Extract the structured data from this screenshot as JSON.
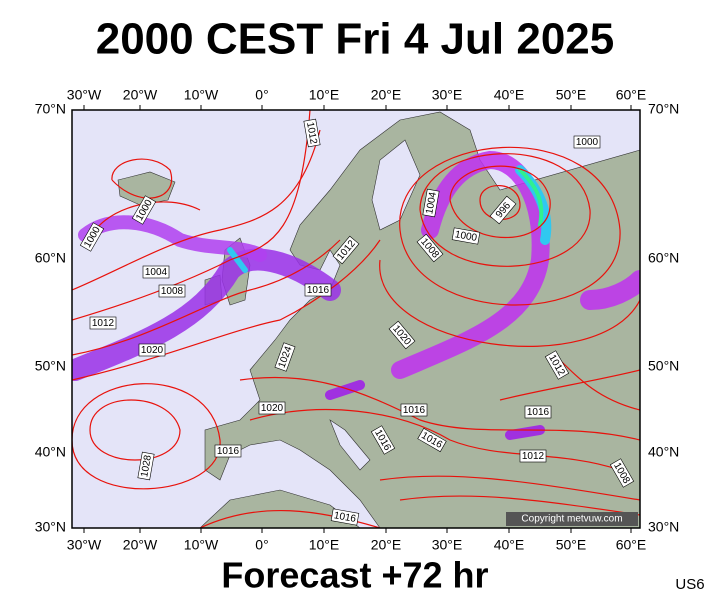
{
  "title": "2000 CEST Fri 4 Jul 2025",
  "longitude_labels": [
    "30°W",
    "20°W",
    "10°W",
    "0°",
    "10°E",
    "20°E",
    "30°E",
    "40°E",
    "50°E",
    "60°E"
  ],
  "latitude_labels": [
    "70°N",
    "60°N",
    "50°N",
    "40°N",
    "30°N"
  ],
  "isobar_labels": [
    "1012",
    "1000",
    "1000",
    "1000",
    "1004",
    "996",
    "1000",
    "1008",
    "1012",
    "1004",
    "1008",
    "1016",
    "1012",
    "1020",
    "1020",
    "1024",
    "1012",
    "1016",
    "1020",
    "1016",
    "1016",
    "1016",
    "1016",
    "1012",
    "1028",
    "1008",
    "1016"
  ],
  "copyright": "Copyright metvuw.com",
  "forecast": "Forecast +72 hr",
  "code": "US6"
}
